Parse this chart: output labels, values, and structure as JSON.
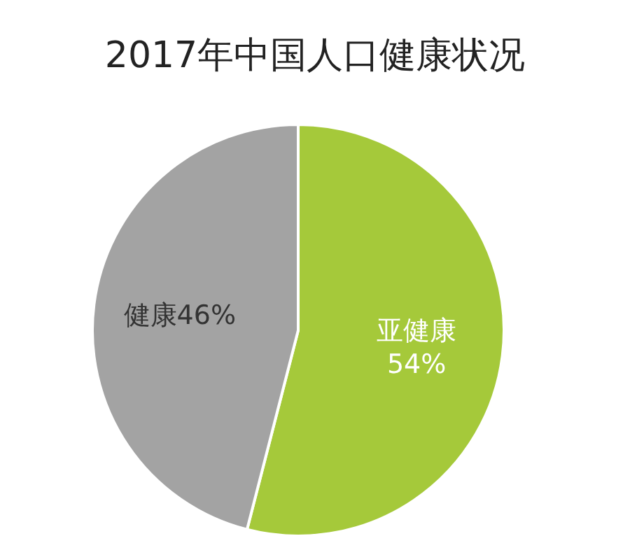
{
  "chart_data": {
    "type": "pie",
    "title": "2017年中国人口健康状况",
    "categories": [
      "亚健康",
      "健康"
    ],
    "values": [
      54,
      46
    ],
    "colors": [
      "#a5c93a",
      "#a3a3a3"
    ],
    "value_labels": [
      "54%",
      "46%"
    ],
    "legend": false
  }
}
